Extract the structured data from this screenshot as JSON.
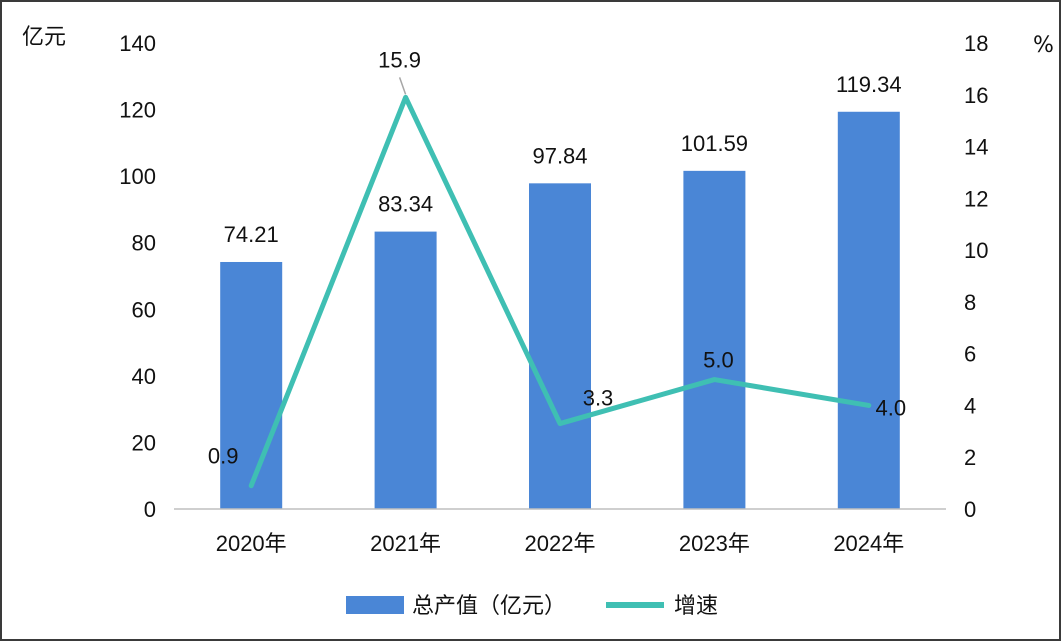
{
  "chart_data": {
    "type": "bar",
    "categories": [
      "2020年",
      "2021年",
      "2022年",
      "2023年",
      "2024年"
    ],
    "series": [
      {
        "name": "总产值（亿元）",
        "type": "bar",
        "axis": "left",
        "values": [
          74.21,
          83.34,
          97.84,
          101.59,
          119.34
        ],
        "labels": [
          "74.21",
          "83.34",
          "97.84",
          "101.59",
          "119.34"
        ],
        "color": "#4a86d6"
      },
      {
        "name": "增速",
        "type": "line",
        "axis": "right",
        "values": [
          0.9,
          15.9,
          3.3,
          5.0,
          4.0
        ],
        "labels": [
          "0.9",
          "15.9",
          "3.3",
          "5.0",
          "4.0"
        ],
        "color": "#3fbfb3"
      }
    ],
    "y_left": {
      "unit": "亿元",
      "ylim": [
        0,
        140
      ],
      "ticks": [
        "0",
        "20",
        "40",
        "60",
        "80",
        "100",
        "120",
        "140"
      ]
    },
    "y_right": {
      "unit": "%",
      "ylim": [
        0,
        18
      ],
      "ticks": [
        "0",
        "2",
        "4",
        "6",
        "8",
        "10",
        "12",
        "14",
        "16",
        "18"
      ]
    },
    "grid": false,
    "legend": "bottom"
  }
}
